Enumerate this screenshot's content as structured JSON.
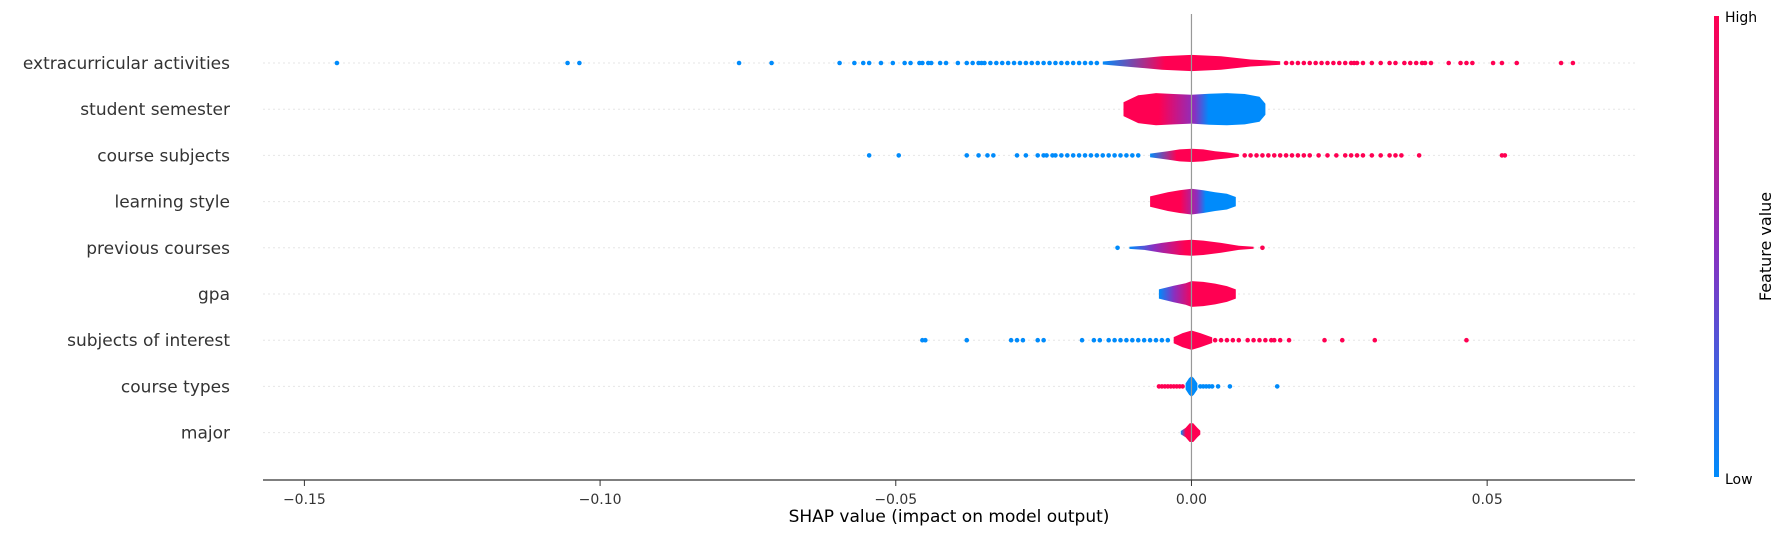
{
  "chart_data": {
    "type": "violin",
    "title": "",
    "xlabel": "SHAP value (impact on model output)",
    "ylabel": "",
    "xlim": [
      -0.157,
      0.075
    ],
    "xticks": [
      -0.15,
      -0.1,
      -0.05,
      0.0,
      0.05
    ],
    "xtick_labels": [
      "−0.15",
      "−0.10",
      "−0.05",
      "0.00",
      "0.05"
    ],
    "grid": false,
    "colors": {
      "low": "#008bfb",
      "mid": "#8b2fbf",
      "high": "#ff0052"
    },
    "colorbar": {
      "title": "Feature value",
      "high_label": "High",
      "low_label": "Low"
    },
    "features": [
      {
        "name": "extracurricular activities",
        "core": {
          "min": -0.015,
          "max": 0.015,
          "width": 0.32
        },
        "shape": [
          [
            -0.015,
            0.1
          ],
          [
            -0.01,
            0.28
          ],
          [
            -0.005,
            0.45
          ],
          [
            0.0,
            0.55
          ],
          [
            0.005,
            0.45
          ],
          [
            0.01,
            0.24
          ],
          [
            0.015,
            0.12
          ]
        ],
        "gradient": [
          [
            0,
            "low"
          ],
          [
            0.35,
            "high"
          ],
          [
            1,
            "high"
          ]
        ],
        "outliers_low": [
          -0.1445,
          -0.1055,
          -0.1035,
          -0.0765,
          -0.071,
          -0.0595,
          -0.057,
          -0.0555,
          -0.0545,
          -0.0525,
          -0.0505,
          -0.0485,
          -0.0475,
          -0.046,
          -0.0455,
          -0.0445,
          -0.044,
          -0.0425,
          -0.0415,
          -0.0395,
          -0.038,
          -0.037,
          -0.036,
          -0.0355,
          -0.035,
          -0.034,
          -0.033,
          -0.032,
          -0.031,
          -0.03,
          -0.029,
          -0.028,
          -0.027,
          -0.026,
          -0.025,
          -0.024,
          -0.023,
          -0.022,
          -0.021,
          -0.02,
          -0.019,
          -0.018,
          -0.017,
          -0.016
        ],
        "outliers_high": [
          0.016,
          0.017,
          0.018,
          0.019,
          0.02,
          0.021,
          0.022,
          0.023,
          0.024,
          0.025,
          0.026,
          0.027,
          0.0275,
          0.028,
          0.029,
          0.0305,
          0.032,
          0.0335,
          0.0345,
          0.036,
          0.037,
          0.038,
          0.039,
          0.0395,
          0.0405,
          0.0435,
          0.0455,
          0.0465,
          0.0475,
          0.051,
          0.0525,
          0.055,
          0.0625,
          0.0645
        ]
      },
      {
        "name": "student semester",
        "core": {
          "min": -0.0115,
          "max": 0.0125,
          "width": 0.6
        },
        "shape": [
          [
            -0.0115,
            0.25
          ],
          [
            -0.009,
            0.5
          ],
          [
            -0.006,
            0.58
          ],
          [
            -0.003,
            0.55
          ],
          [
            0.0,
            0.52
          ],
          [
            0.003,
            0.56
          ],
          [
            0.006,
            0.58
          ],
          [
            0.009,
            0.55
          ],
          [
            0.0115,
            0.45
          ],
          [
            0.0125,
            0.2
          ]
        ],
        "gradient": [
          [
            0,
            "high"
          ],
          [
            0.25,
            "high"
          ],
          [
            0.5,
            "mid"
          ],
          [
            0.6,
            "low"
          ],
          [
            1,
            "low"
          ]
        ],
        "outliers_low": [],
        "outliers_high": []
      },
      {
        "name": "course subjects",
        "core": {
          "min": -0.007,
          "max": 0.008,
          "width": 0.26
        },
        "shape": [
          [
            -0.007,
            0.15
          ],
          [
            -0.004,
            0.35
          ],
          [
            -0.002,
            0.5
          ],
          [
            0.0,
            0.55
          ],
          [
            0.002,
            0.5
          ],
          [
            0.004,
            0.35
          ],
          [
            0.006,
            0.25
          ],
          [
            0.008,
            0.12
          ]
        ],
        "gradient": [
          [
            0,
            "low"
          ],
          [
            0.3,
            "high"
          ],
          [
            1,
            "high"
          ]
        ],
        "outliers_low": [
          -0.0545,
          -0.0495,
          -0.038,
          -0.036,
          -0.0345,
          -0.0335,
          -0.0295,
          -0.028,
          -0.026,
          -0.025,
          -0.0245,
          -0.0235,
          -0.023,
          -0.022,
          -0.021,
          -0.02,
          -0.019,
          -0.018,
          -0.017,
          -0.016,
          -0.015,
          -0.014,
          -0.013,
          -0.012,
          -0.011,
          -0.01,
          -0.009
        ],
        "outliers_high": [
          0.009,
          0.01,
          0.011,
          0.012,
          0.013,
          0.014,
          0.015,
          0.016,
          0.017,
          0.018,
          0.019,
          0.02,
          0.0215,
          0.023,
          0.0245,
          0.026,
          0.027,
          0.028,
          0.029,
          0.0305,
          0.032,
          0.0335,
          0.0345,
          0.0355,
          0.0385,
          0.0525,
          0.053
        ]
      },
      {
        "name": "learning style",
        "core": {
          "min": -0.007,
          "max": 0.0075,
          "width": 0.45
        },
        "shape": [
          [
            -0.007,
            0.25
          ],
          [
            -0.004,
            0.45
          ],
          [
            -0.002,
            0.55
          ],
          [
            0.0,
            0.62
          ],
          [
            0.002,
            0.55
          ],
          [
            0.004,
            0.45
          ],
          [
            0.006,
            0.38
          ],
          [
            0.0075,
            0.22
          ]
        ],
        "gradient": [
          [
            0,
            "high"
          ],
          [
            0.35,
            "high"
          ],
          [
            0.55,
            "mid"
          ],
          [
            0.65,
            "low"
          ],
          [
            1,
            "low"
          ]
        ],
        "outliers_low": [],
        "outliers_high": []
      },
      {
        "name": "previous courses",
        "core": {
          "min": -0.0105,
          "max": 0.0105,
          "width": 0.3
        },
        "shape": [
          [
            -0.0105,
            0.08
          ],
          [
            -0.008,
            0.15
          ],
          [
            -0.005,
            0.35
          ],
          [
            -0.002,
            0.52
          ],
          [
            0.0,
            0.58
          ],
          [
            0.002,
            0.52
          ],
          [
            0.005,
            0.35
          ],
          [
            0.008,
            0.15
          ],
          [
            0.0105,
            0.07
          ]
        ],
        "gradient": [
          [
            0,
            "low"
          ],
          [
            0.2,
            "mid"
          ],
          [
            0.45,
            "high"
          ],
          [
            1,
            "high"
          ]
        ],
        "outliers_low": [
          -0.0125
        ],
        "outliers_high": [
          0.012
        ]
      },
      {
        "name": "gpa",
        "core": {
          "min": -0.0055,
          "max": 0.0075,
          "width": 0.45
        },
        "shape": [
          [
            -0.0055,
            0.22
          ],
          [
            -0.003,
            0.4
          ],
          [
            -0.001,
            0.52
          ],
          [
            0.0,
            0.62
          ],
          [
            0.002,
            0.58
          ],
          [
            0.004,
            0.5
          ],
          [
            0.006,
            0.38
          ],
          [
            0.0075,
            0.22
          ]
        ],
        "gradient": [
          [
            0,
            "low"
          ],
          [
            0.2,
            "mid"
          ],
          [
            0.45,
            "high"
          ],
          [
            1,
            "high"
          ]
        ],
        "outliers_low": [],
        "outliers_high": []
      },
      {
        "name": "subjects of interest",
        "core": {
          "min": -0.003,
          "max": 0.0035,
          "width": 0.34
        },
        "shape": [
          [
            -0.003,
            0.2
          ],
          [
            -0.0015,
            0.45
          ],
          [
            0.0,
            0.62
          ],
          [
            0.0015,
            0.45
          ],
          [
            0.0035,
            0.18
          ]
        ],
        "gradient": [
          [
            0,
            "high"
          ],
          [
            1,
            "high"
          ]
        ],
        "outliers_low": [
          -0.0455,
          -0.045,
          -0.038,
          -0.0305,
          -0.0295,
          -0.0285,
          -0.026,
          -0.025,
          -0.0185,
          -0.0165,
          -0.0155,
          -0.014,
          -0.013,
          -0.012,
          -0.011,
          -0.01,
          -0.009,
          -0.008,
          -0.007,
          -0.006,
          -0.005,
          -0.004
        ],
        "outliers_high": [
          0.004,
          0.005,
          0.006,
          0.007,
          0.008,
          0.0095,
          0.0105,
          0.0115,
          0.0125,
          0.0135,
          0.014,
          0.015,
          0.0165,
          0.0225,
          0.0255,
          0.031,
          0.0465
        ]
      },
      {
        "name": "course types",
        "core": {
          "min": -0.001,
          "max": 0.001,
          "width": 0.36
        },
        "shape": [
          [
            -0.001,
            0.18
          ],
          [
            -0.0004,
            0.5
          ],
          [
            0.0,
            0.62
          ],
          [
            0.0004,
            0.5
          ],
          [
            0.001,
            0.18
          ]
        ],
        "gradient": [
          [
            0,
            "low"
          ],
          [
            1,
            "low"
          ]
        ],
        "outliers_low": [
          -0.0055,
          -0.005,
          -0.0045,
          -0.004,
          -0.0035,
          -0.003,
          -0.0025,
          -0.002,
          -0.0015
        ],
        "outliers_high": [
          0.0015,
          0.002,
          0.0025,
          0.003,
          0.0035,
          0.0045,
          0.0065,
          0.0145
        ],
        "outlier_colors": {
          "low": "high",
          "high": "low"
        }
      },
      {
        "name": "major",
        "core": {
          "min": -0.0018,
          "max": 0.0015,
          "width": 0.34
        },
        "shape": [
          [
            -0.0018,
            0.1
          ],
          [
            -0.001,
            0.3
          ],
          [
            -0.0003,
            0.6
          ],
          [
            0.0003,
            0.6
          ],
          [
            0.001,
            0.3
          ],
          [
            0.0015,
            0.12
          ]
        ],
        "gradient": [
          [
            0,
            "low"
          ],
          [
            0.25,
            "high"
          ],
          [
            1,
            "high"
          ]
        ],
        "outliers_low": [],
        "outliers_high": []
      }
    ]
  }
}
